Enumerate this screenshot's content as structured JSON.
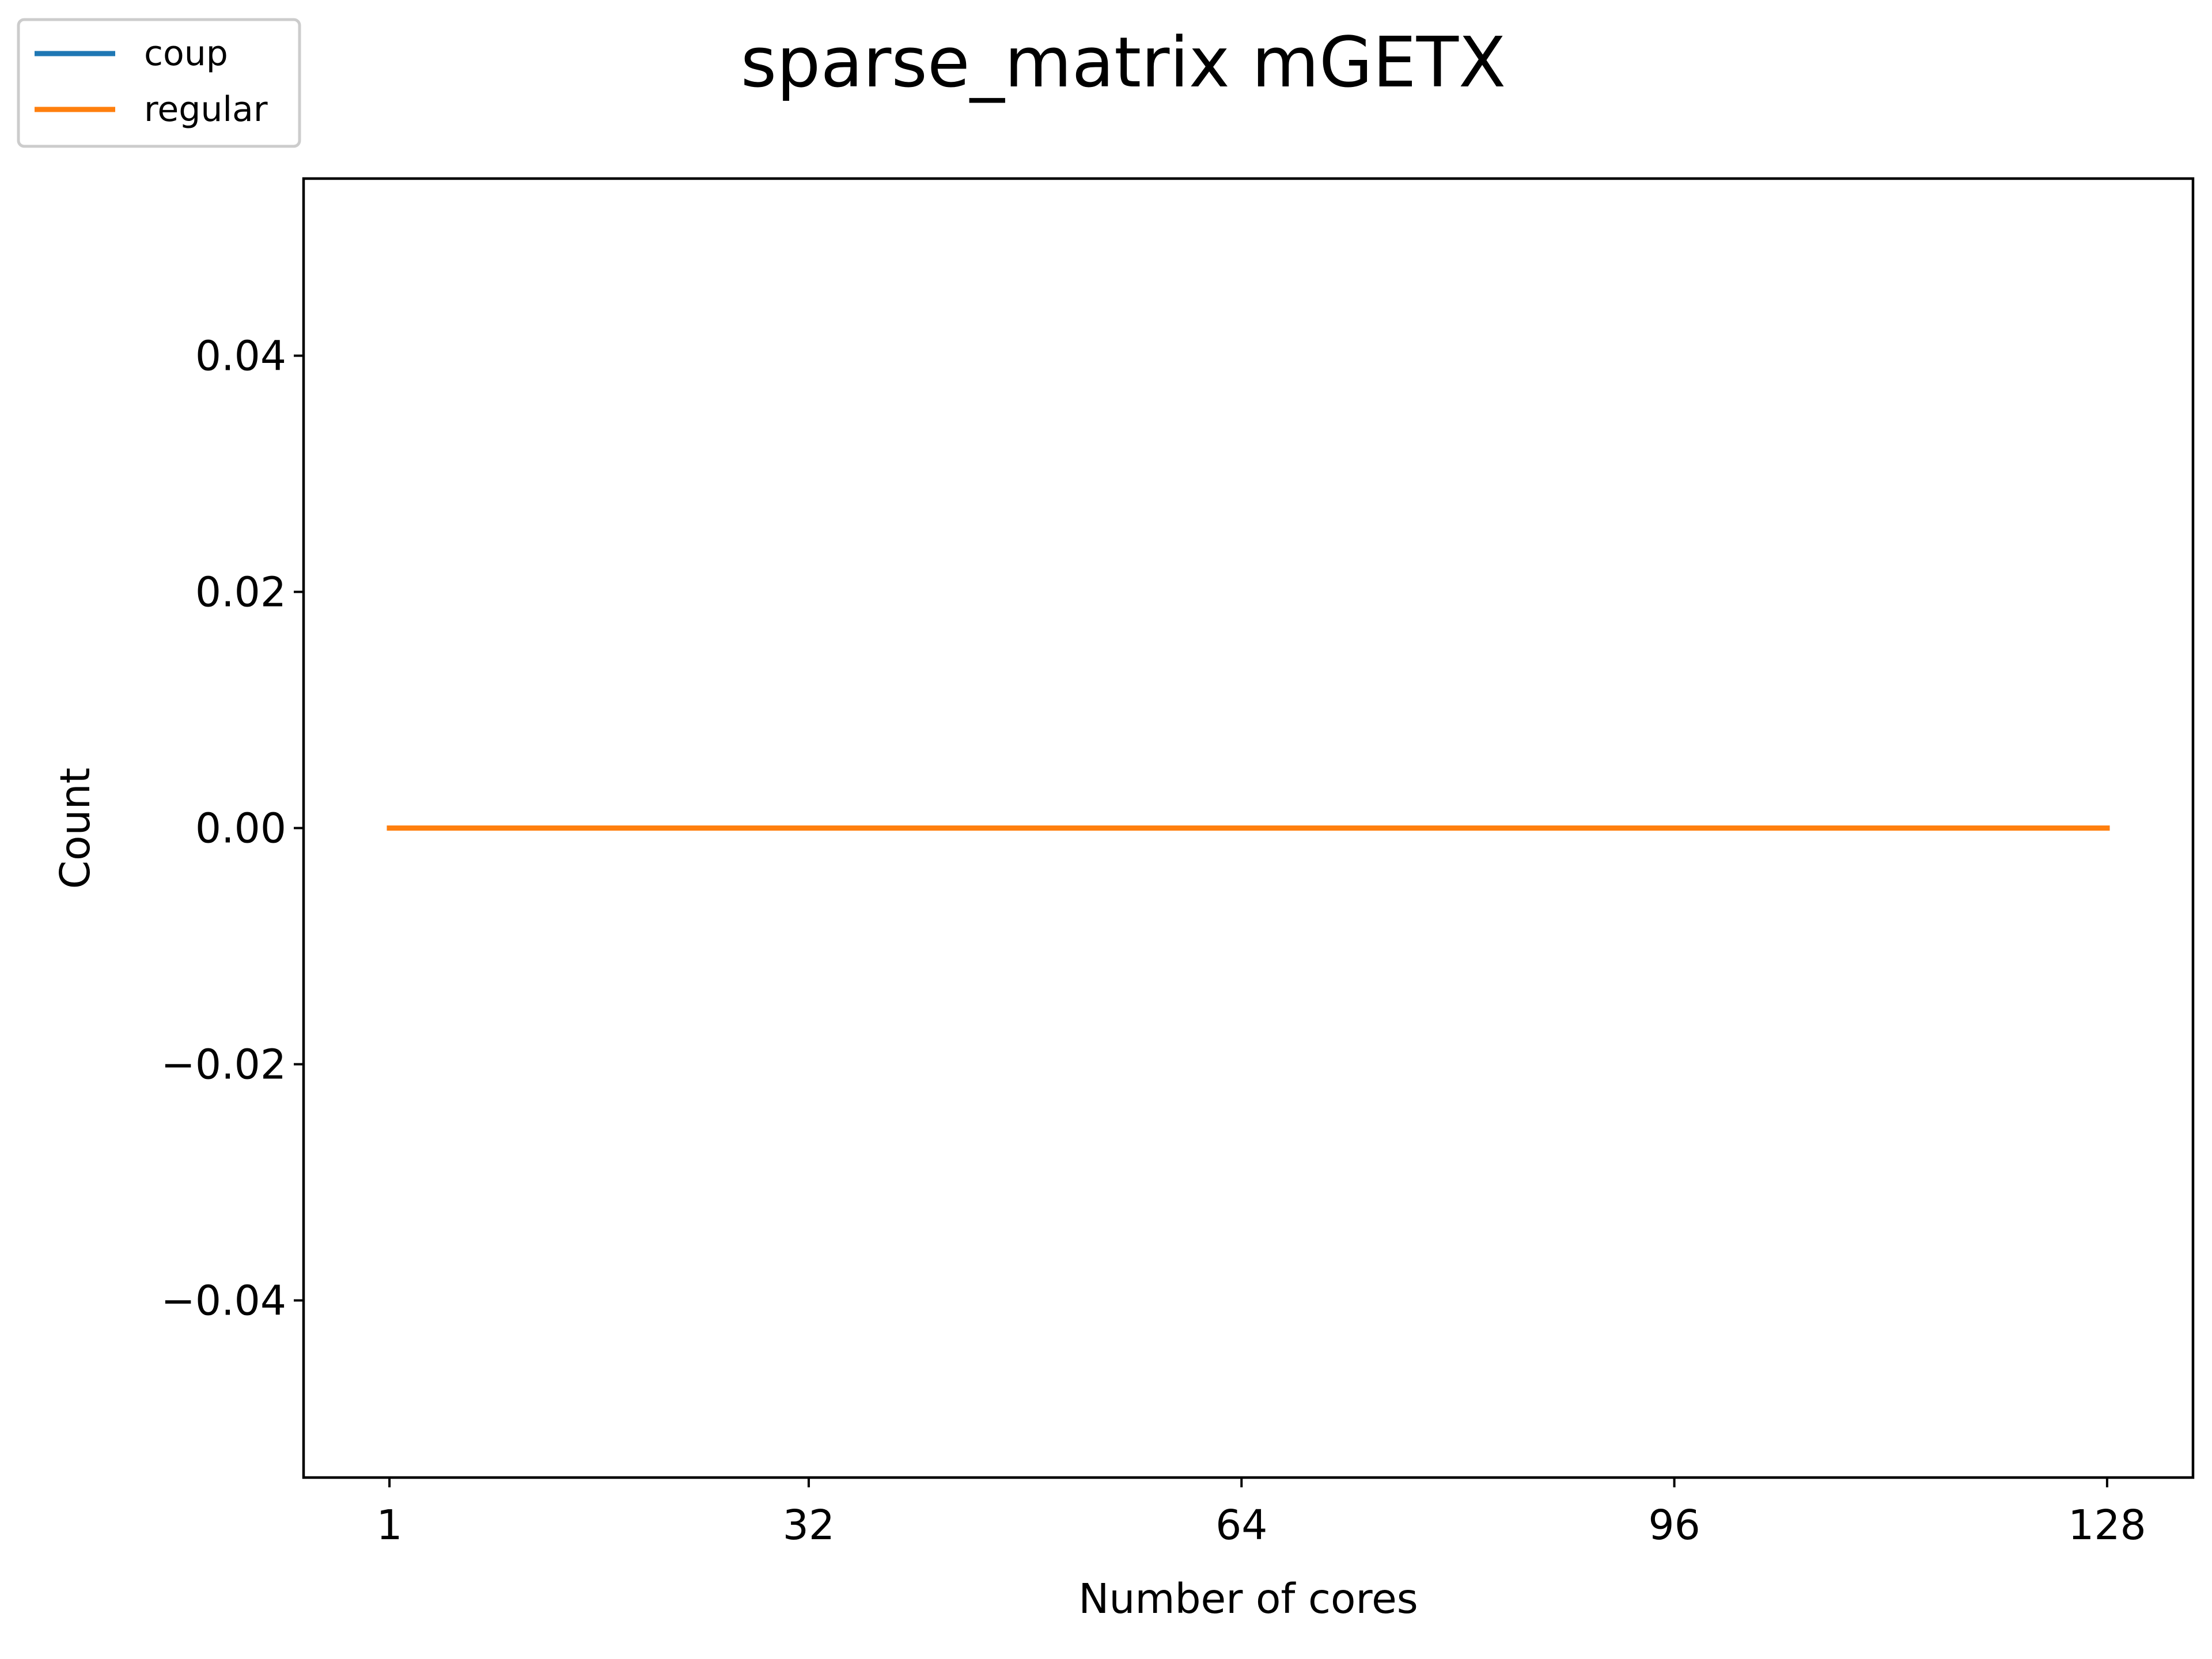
{
  "chart_data": {
    "type": "line",
    "title": "sparse_matrix mGETX",
    "xlabel": "Number of cores",
    "ylabel": "Count",
    "x_ticks": [
      1,
      32,
      64,
      96,
      128
    ],
    "x_tick_labels": [
      "1",
      "32",
      "64",
      "96",
      "128"
    ],
    "y_ticks": [
      0.04,
      0.02,
      0.0,
      -0.02,
      -0.04
    ],
    "y_tick_labels": [
      "0.04",
      "0.02",
      "0.00",
      "−0.02",
      "−0.04"
    ],
    "xlim": [
      -5.35,
      134.35
    ],
    "ylim": [
      -0.055,
      0.055
    ],
    "grid": false,
    "legend_position": "top-left",
    "x": [
      1,
      128
    ],
    "series": [
      {
        "name": "coup",
        "color": "#1f77b4",
        "values": [
          0,
          0
        ]
      },
      {
        "name": "regular",
        "color": "#ff7f0e",
        "values": [
          0,
          0
        ]
      }
    ]
  }
}
